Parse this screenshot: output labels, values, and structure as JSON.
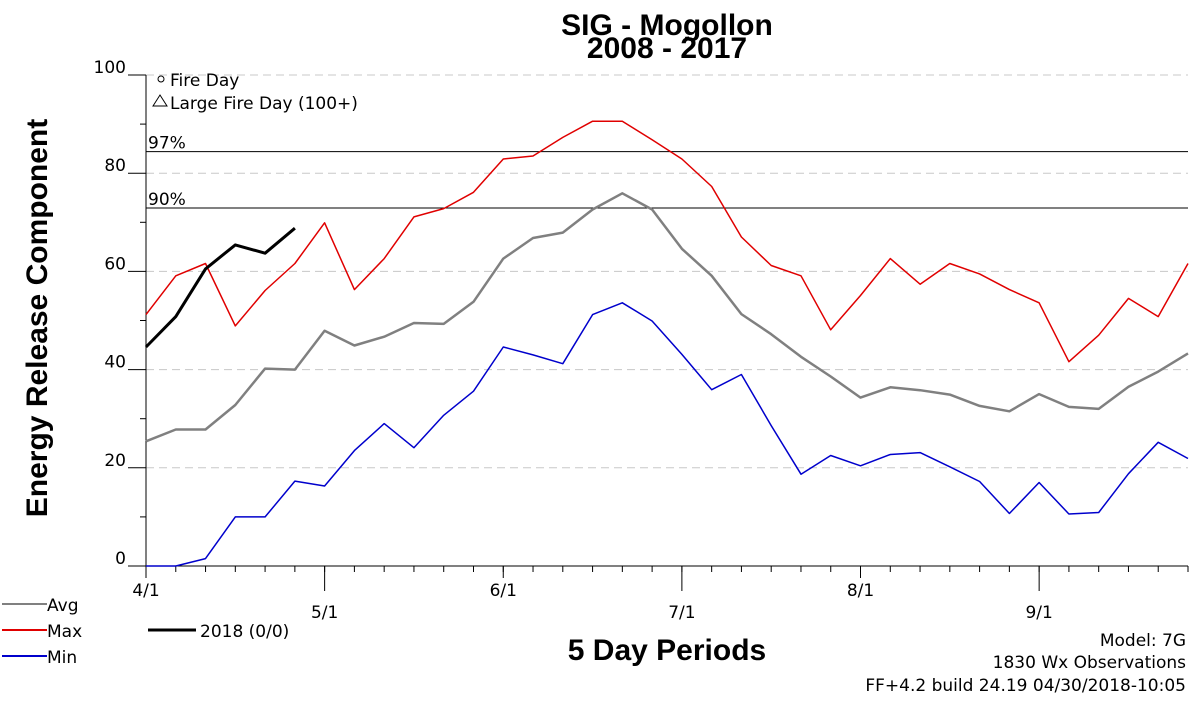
{
  "chart_data": {
    "type": "line",
    "title": "SIG - Mogollon",
    "subtitle": "2008 - 2017",
    "ylabel": "Energy Release Component",
    "xlabel": "5 Day Periods",
    "ylim": [
      0,
      100
    ],
    "yticks": [
      0,
      20,
      40,
      60,
      80,
      100
    ],
    "xtick_labels": [
      "4/1",
      "5/1",
      "6/1",
      "7/1",
      "8/1",
      "9/1"
    ],
    "xtick_periods": [
      0,
      6,
      12,
      18,
      24,
      30
    ],
    "period_count": 35,
    "grid": "dashed horizontal",
    "reference_lines": [
      {
        "label": "97%",
        "value": 84.4
      },
      {
        "label": "90%",
        "value": 72.9
      }
    ],
    "symbol_legend": [
      {
        "symbol": "circle",
        "label": "Fire Day"
      },
      {
        "symbol": "triangle",
        "label": "Large Fire Day (100+)"
      }
    ],
    "series": [
      {
        "name": "Avg",
        "color": "#808080",
        "values": [
          25.4,
          27.8,
          27.8,
          32.8,
          40.2,
          40.0,
          47.9,
          44.9,
          46.7,
          49.5,
          49.3,
          53.8,
          62.6,
          66.8,
          67.9,
          72.6,
          75.9,
          72.6,
          64.6,
          59.1,
          51.3,
          47.2,
          42.6,
          38.6,
          34.3,
          36.4,
          35.8,
          34.9,
          32.6,
          31.5,
          35.0,
          32.4,
          32.0,
          36.5,
          39.6,
          43.3
        ]
      },
      {
        "name": "Max",
        "color": "#e00000",
        "values": [
          51.2,
          59.1,
          61.6,
          48.9,
          56.1,
          61.6,
          69.9,
          56.3,
          62.6,
          71.1,
          72.8,
          76.1,
          82.9,
          83.5,
          87.3,
          90.6,
          90.6,
          86.8,
          82.9,
          77.3,
          67.0,
          61.2,
          59.1,
          48.1,
          55.1,
          62.6,
          57.4,
          61.6,
          59.5,
          56.3,
          53.6,
          41.6,
          47.0,
          54.5,
          50.8,
          61.6
        ]
      },
      {
        "name": "Min",
        "color": "#0000cc",
        "values": [
          0.0,
          0.0,
          1.5,
          10.0,
          10.0,
          17.3,
          16.3,
          23.5,
          29.0,
          24.1,
          30.7,
          35.6,
          44.6,
          43.0,
          41.2,
          51.2,
          53.6,
          49.9,
          43.1,
          35.9,
          39.0,
          28.6,
          18.7,
          22.5,
          20.4,
          22.7,
          23.1,
          20.2,
          17.2,
          10.7,
          17.0,
          10.6,
          10.9,
          18.8,
          25.2,
          21.9
        ]
      },
      {
        "name": "2018 (0/0)",
        "color": "#000000",
        "values": [
          44.6,
          50.8,
          60.5,
          65.4,
          63.7,
          68.8
        ]
      }
    ]
  },
  "legend": {
    "avg": "Avg",
    "max": "Max",
    "min": "Min",
    "year": "2018 (0/0)"
  },
  "footer": {
    "model": "Model: 7G",
    "observations": "1830 Wx Observations",
    "build": "FF+4.2 build 24.19 04/30/2018-10:05"
  }
}
